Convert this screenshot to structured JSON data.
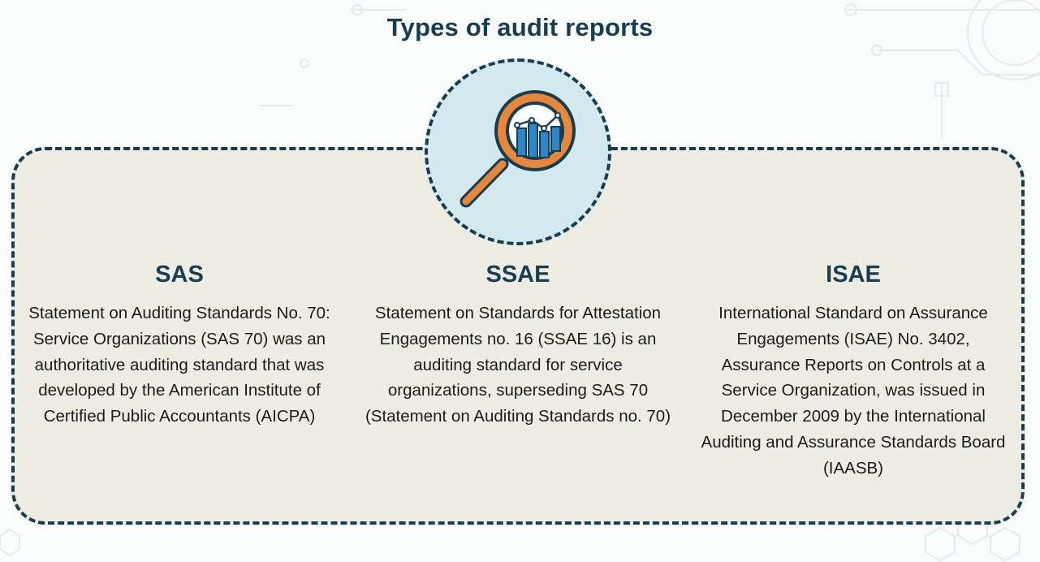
{
  "title": "Types of audit reports",
  "icon": "magnifier-chart-icon",
  "colors": {
    "title": "#163e52",
    "panel_bg": "#ededE4",
    "circle_bg": "#d3e9ef",
    "magnifier": "#e8873a",
    "bars": "#2f86c7"
  },
  "columns": [
    {
      "heading": "SAS",
      "text": "Statement on Auditing Standards No. 70: Service Organizations (SAS 70) was an authoritative auditing standard that was developed by the American Institute of Certified Public Accountants (AICPA)"
    },
    {
      "heading": "SSAE",
      "text": "Statement on Standards for Attestation Engagements no. 16 (SSAE 16) is an auditing standard for service organizations, superseding SAS 70 (Statement on Auditing Standards no. 70)"
    },
    {
      "heading": "ISAE",
      "text": "International Standard on Assurance Engagements (ISAE) No. 3402, Assurance Reports on Controls at a Service Organization, was issued in December 2009 by the International Auditing and Assurance Standards Board (IAASB)"
    }
  ]
}
